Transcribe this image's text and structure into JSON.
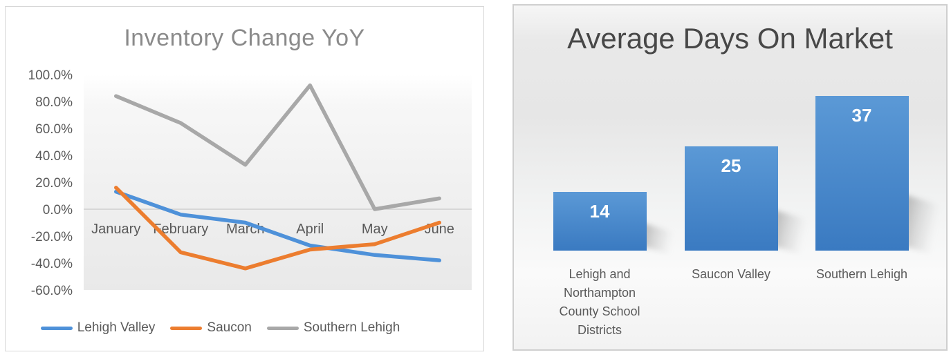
{
  "chart_data": [
    {
      "id": "inventory_change_yoy",
      "type": "line",
      "title": "Inventory Change YoY",
      "categories": [
        "January",
        "February",
        "March",
        "April",
        "May",
        "June"
      ],
      "series": [
        {
          "name": "Lehigh Valley",
          "color": "#4e91d9",
          "values": [
            0.13,
            -0.04,
            -0.1,
            -0.27,
            -0.34,
            -0.38
          ]
        },
        {
          "name": "Saucon",
          "color": "#ec7d2f",
          "values": [
            0.16,
            -0.32,
            -0.44,
            -0.3,
            -0.26,
            -0.1
          ]
        },
        {
          "name": "Southern Lehigh",
          "color": "#a8a8a8",
          "values": [
            0.84,
            0.64,
            0.33,
            0.92,
            0.0,
            0.08
          ]
        }
      ],
      "y_axis": {
        "min": -0.6,
        "max": 1.0,
        "step": 0.2,
        "tick_labels": [
          "100.0%",
          "80.0%",
          "60.0%",
          "40.0%",
          "20.0%",
          "0.0%",
          "-20.0%",
          "-40.0%",
          "-60.0%"
        ]
      },
      "zero_line_color": "#bfbfbf",
      "gridlines": false,
      "legend_position": "bottom",
      "text_color": "#595959",
      "title_color": "#8a8a8a"
    },
    {
      "id": "average_days_on_market",
      "type": "bar",
      "title": "Average Days On Market",
      "categories": [
        "Lehigh and Northampton County School Districts",
        "Saucon Valley",
        "Southern Lehigh"
      ],
      "values": [
        14,
        25,
        37
      ],
      "bar_color_top": "#5b99d6",
      "bar_color_bottom": "#3a7ac1",
      "data_labels": {
        "position": "inside_end",
        "color": "#ffffff"
      },
      "text_color": "#595959",
      "title_color": "#474747"
    }
  ]
}
